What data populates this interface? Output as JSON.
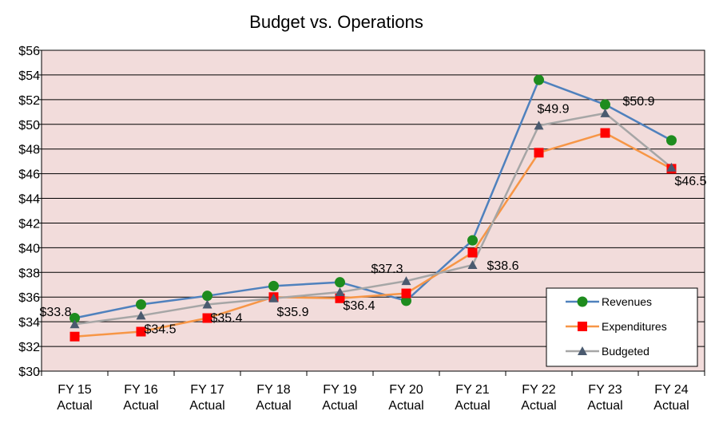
{
  "chart_data": {
    "type": "line",
    "title": "Budget vs. Operations",
    "xlabel": "",
    "ylabel": "",
    "ylim": [
      30,
      56
    ],
    "ystep": 2,
    "y_prefix": "$",
    "grid": true,
    "legend_position": "bottom-right",
    "categories": [
      [
        "FY 15",
        "Actual"
      ],
      [
        "FY 16",
        "Actual"
      ],
      [
        "FY 17",
        "Actual"
      ],
      [
        "FY 18",
        "Actual"
      ],
      [
        "FY 19",
        "Actual"
      ],
      [
        "FY 20",
        "Actual"
      ],
      [
        "FY 21",
        "Actual"
      ],
      [
        "FY 22",
        "Actual"
      ],
      [
        "FY 23",
        "Actual"
      ],
      [
        "FY 24",
        "Actual"
      ]
    ],
    "series": [
      {
        "name": "Revenues",
        "color": "#4F81BD",
        "marker": "circle",
        "marker_color": "#1E8C1E",
        "values": [
          34.3,
          35.4,
          36.1,
          36.9,
          37.2,
          35.7,
          40.6,
          53.6,
          51.6,
          48.7
        ]
      },
      {
        "name": "Expenditures",
        "color": "#F79646",
        "marker": "square",
        "marker_color": "#FF0000",
        "values": [
          32.8,
          33.2,
          34.3,
          36.0,
          35.9,
          36.3,
          39.6,
          47.7,
          49.3,
          46.4
        ]
      },
      {
        "name": "Budgeted",
        "color": "#A6A6A6",
        "marker": "triangle",
        "marker_color": "#4A5A6F",
        "values": [
          33.8,
          34.5,
          35.4,
          35.9,
          36.4,
          37.3,
          38.6,
          49.9,
          50.9,
          46.5
        ]
      }
    ],
    "data_labels": [
      {
        "series": 2,
        "index": 0,
        "text": "$33.8",
        "pos": "above-left"
      },
      {
        "series": 2,
        "index": 1,
        "text": "$34.5",
        "pos": "below"
      },
      {
        "series": 2,
        "index": 2,
        "text": "$35.4",
        "pos": "below"
      },
      {
        "series": 2,
        "index": 3,
        "text": "$35.9",
        "pos": "below"
      },
      {
        "series": 2,
        "index": 4,
        "text": "$36.4",
        "pos": "below"
      },
      {
        "series": 2,
        "index": 5,
        "text": "$37.3",
        "pos": "above-left"
      },
      {
        "series": 2,
        "index": 6,
        "text": "$38.6",
        "pos": "right"
      },
      {
        "series": 2,
        "index": 7,
        "text": "$49.9",
        "pos": "above"
      },
      {
        "series": 2,
        "index": 8,
        "text": "$50.9",
        "pos": "right-above"
      },
      {
        "series": 2,
        "index": 9,
        "text": "$46.5",
        "pos": "below"
      }
    ],
    "plot_background": "#F2DCDB"
  }
}
